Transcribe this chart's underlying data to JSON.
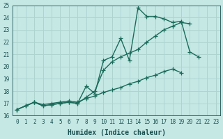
{
  "title": "",
  "xlabel": "Humidex (Indice chaleur)",
  "ylabel": "",
  "bg_color": "#c5e8e5",
  "grid_color": "#aed4d0",
  "line_color": "#1a6b5a",
  "x_values": [
    0,
    1,
    2,
    3,
    4,
    5,
    6,
    7,
    8,
    9,
    10,
    11,
    12,
    13,
    14,
    15,
    16,
    17,
    18,
    19,
    20,
    21,
    22,
    23
  ],
  "line1": [
    16.5,
    16.8,
    17.1,
    16.8,
    16.9,
    17.0,
    17.1,
    17.0,
    18.4,
    17.8,
    20.5,
    20.8,
    22.3,
    20.5,
    24.8,
    24.1,
    24.1,
    23.9,
    23.6,
    23.7,
    21.2,
    20.8,
    null,
    null
  ],
  "line2": [
    16.5,
    16.8,
    17.1,
    16.8,
    16.9,
    17.0,
    17.1,
    17.0,
    17.5,
    18.0,
    19.7,
    20.4,
    20.8,
    21.1,
    21.4,
    22.0,
    22.5,
    23.0,
    23.3,
    23.6,
    23.5,
    null,
    null,
    null
  ],
  "line3": [
    16.5,
    16.8,
    17.1,
    16.9,
    17.0,
    17.1,
    17.2,
    17.1,
    17.4,
    17.6,
    17.9,
    18.1,
    18.3,
    18.6,
    18.8,
    19.1,
    19.3,
    19.6,
    19.8,
    19.5,
    null,
    null,
    null,
    null
  ],
  "ylim": [
    16,
    25
  ],
  "xlim": [
    -0.5,
    23.5
  ],
  "yticks": [
    16,
    17,
    18,
    19,
    20,
    21,
    22,
    23,
    24,
    25
  ],
  "xticks": [
    0,
    1,
    2,
    3,
    4,
    5,
    6,
    7,
    8,
    9,
    10,
    11,
    12,
    13,
    14,
    15,
    16,
    17,
    18,
    19,
    20,
    21,
    22,
    23
  ],
  "marker": "+",
  "markersize": 4,
  "linewidth": 1.0,
  "font_color": "#1a5050",
  "tick_fontsize": 5.5,
  "xlabel_fontsize": 7
}
